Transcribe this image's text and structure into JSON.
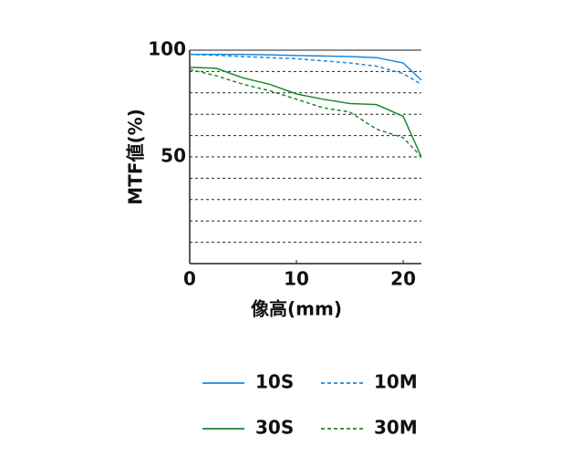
{
  "chart_data": {
    "type": "line",
    "xlabel": "像高(mm)",
    "ylabel": "MTF値(%)",
    "x": [
      0,
      2.5,
      5,
      7.5,
      10,
      12.5,
      15,
      17.5,
      20,
      21.7
    ],
    "series": [
      {
        "name": "10S",
        "color": "#1e88d8",
        "dash": false,
        "values": [
          98,
          98,
          98,
          97.8,
          97.5,
          97.3,
          97,
          96.5,
          94,
          86
        ]
      },
      {
        "name": "10M",
        "color": "#1e88d8",
        "dash": true,
        "values": [
          98,
          97.6,
          97,
          96.5,
          96,
          95,
          94,
          92.5,
          89,
          84
        ]
      },
      {
        "name": "30S",
        "color": "#1a8a2a",
        "dash": false,
        "values": [
          92,
          91.5,
          87,
          84,
          79.5,
          77,
          75,
          74.5,
          69,
          50
        ]
      },
      {
        "name": "30M",
        "color": "#1a8a2a",
        "dash": true,
        "values": [
          91,
          88,
          84,
          81,
          77,
          73,
          71,
          63,
          59,
          50
        ]
      }
    ],
    "xlim": [
      0,
      21.7
    ],
    "ylim": [
      0,
      100
    ],
    "xticks": [
      0,
      10,
      20
    ],
    "yticks": [
      50,
      100
    ],
    "ygrid": [
      10,
      20,
      30,
      40,
      50,
      60,
      70,
      80,
      90
    ]
  }
}
